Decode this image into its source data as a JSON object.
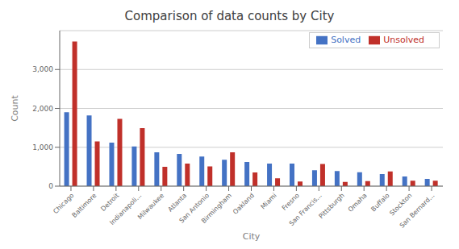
{
  "chart_data": {
    "type": "bar",
    "title": "Comparison of data counts by City",
    "xlabel": "City",
    "ylabel": "Count",
    "categories": [
      "Chicago",
      "Baltimore",
      "Detroit",
      "Indianapoli...",
      "Milwaukee",
      "Atlanta",
      "San Antonio",
      "Birmingham",
      "Oakland",
      "Miami",
      "Fresno",
      "San Francis...",
      "Pittsburgh",
      "Omaha",
      "Buffalo",
      "Stockton",
      "San Bernard..."
    ],
    "series": [
      {
        "name": "Solved",
        "color": "#4472C4",
        "values": [
          1900,
          1820,
          1120,
          1020,
          870,
          830,
          760,
          680,
          620,
          580,
          580,
          410,
          390,
          360,
          310,
          250,
          185
        ]
      },
      {
        "name": "Unsolved",
        "color": "#C0302A",
        "values": [
          3720,
          1150,
          1730,
          1490,
          500,
          580,
          510,
          870,
          350,
          200,
          120,
          570,
          110,
          130,
          380,
          140,
          140
        ]
      }
    ],
    "ylim": [
      0,
      4000
    ],
    "yticks": [
      0,
      {
        "value": 1000,
        "label": "1,000"
      },
      {
        "value": 2000,
        "label": "2,000"
      },
      {
        "value": 3000,
        "label": "3,000"
      }
    ],
    "grid": true,
    "legend": "upper right"
  }
}
